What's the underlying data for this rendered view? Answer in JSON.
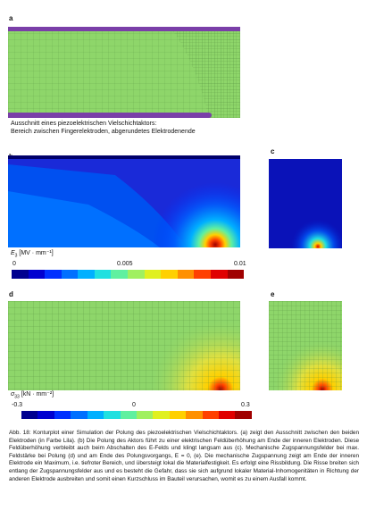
{
  "panels": {
    "a": {
      "letter": "a",
      "caption_line1": "Ausschnitt eines piezoelektrischen Vielschichtaktors:",
      "caption_line2": "Bereich zwischen Fingerelektroden, abgerundetes Elektrodenende"
    },
    "b": {
      "letter": "b"
    },
    "c": {
      "letter": "c"
    },
    "d": {
      "letter": "d"
    },
    "e": {
      "letter": "e"
    }
  },
  "colorbar_e3": {
    "label_symbol": "E",
    "label_sub": "3",
    "label_unit": "[MV · mm⁻¹]",
    "ticks": [
      "0",
      "0.005",
      "0.01"
    ],
    "colors": [
      "#00008f",
      "#0000d0",
      "#0030ff",
      "#0070ff",
      "#00b0ff",
      "#20e0e0",
      "#60f0a0",
      "#a0f060",
      "#e0f020",
      "#ffd000",
      "#ff9000",
      "#ff4000",
      "#e00000",
      "#a00000"
    ]
  },
  "colorbar_s33": {
    "label_symbol": "σ",
    "label_sub": "33",
    "label_unit": "[kN · mm⁻²]",
    "ticks": [
      "-0.3",
      "0",
      "0.3"
    ],
    "colors": [
      "#00008f",
      "#0000d0",
      "#0030ff",
      "#0070ff",
      "#00b0ff",
      "#20e0e0",
      "#60f0a0",
      "#a0f060",
      "#e0f020",
      "#ffd000",
      "#ff9000",
      "#ff4000",
      "#e00000",
      "#a00000"
    ]
  },
  "figure_caption": "Abb. 18: Konturplot einer Simulation der Polung des piezoelektrischen Vielschichtaktors. (a) zeigt den Ausschnitt zwischen den beiden Elektroden (in Farbe Lila). (b) Die Polung des Aktors führt zu einer elektrischen Feldüberhöhung am Ende der inneren Elektroden. Diese Feldüberhöhung verbleibt auch beim Abschalten des E-Felds und klingt langsam aus (c). Mechanische Zugspannungsfelder bei max. Feldstärke bei Polung (d) und am Ende des Polungsvorgangs, E = 0, (e). Die mechanische Zugspannung zeigt am Ende der inneren Elektrode ein Maximum, i.e. tiefroter Bereich, und übersteigt lokal die Materialfestigkeit. Es erfolgt eine Rissbildung. Die Risse breiten sich entlang der Zugspannungsfelder aus und es besteht die Gefahr, dass sie sich aufgrund lokaler Material-Inhomogenitäten in Richtung der anderen Elektrode ausbreiten und somit einen Kurzschluss im Bauteil verursachen, womit es zu einem Ausfall kommt.",
  "colors": {
    "mesh_green": "#8ed66a",
    "electrode_purple": "#7a3fa8",
    "field_blue": "#1a2ad8"
  }
}
